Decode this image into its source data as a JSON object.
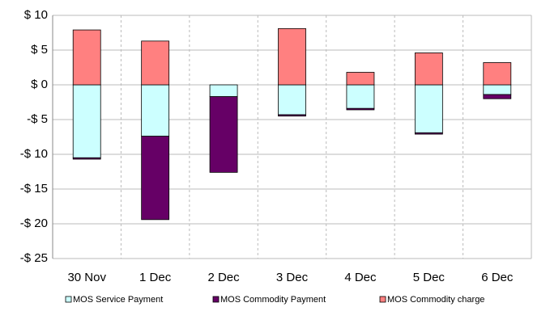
{
  "chart_data": {
    "type": "stacked_bar",
    "categories": [
      "30 Nov",
      "1 Dec",
      "2 Dec",
      "3 Dec",
      "4 Dec",
      "5 Dec",
      "6 Dec"
    ],
    "series": [
      {
        "name": "MOS Service Payment",
        "color": "#ccffff",
        "values": [
          -10.5,
          -7.4,
          -1.7,
          -4.3,
          -3.4,
          -6.9,
          -1.4
        ]
      },
      {
        "name": "MOS Commodity Payment",
        "color": "#660066",
        "values": [
          -0.2,
          -12.0,
          -10.9,
          -0.2,
          -0.2,
          -0.2,
          -0.6
        ]
      },
      {
        "name": "MOS Commodity charge",
        "color": "#ff8080",
        "values": [
          7.9,
          6.3,
          0,
          8.1,
          1.8,
          4.6,
          3.2
        ]
      }
    ],
    "ylim": [
      -25,
      10
    ],
    "yticks": [
      {
        "value": 10,
        "label": "$ 10"
      },
      {
        "value": 5,
        "label": "$ 5"
      },
      {
        "value": 0,
        "label": "$ 0"
      },
      {
        "value": -5,
        "label": "-$ 5"
      },
      {
        "value": -10,
        "label": "-$ 10"
      },
      {
        "value": -15,
        "label": "-$ 15"
      },
      {
        "value": -20,
        "label": "-$ 20"
      },
      {
        "value": -25,
        "label": "-$ 25"
      }
    ],
    "grid": true,
    "legend": "bottom"
  }
}
